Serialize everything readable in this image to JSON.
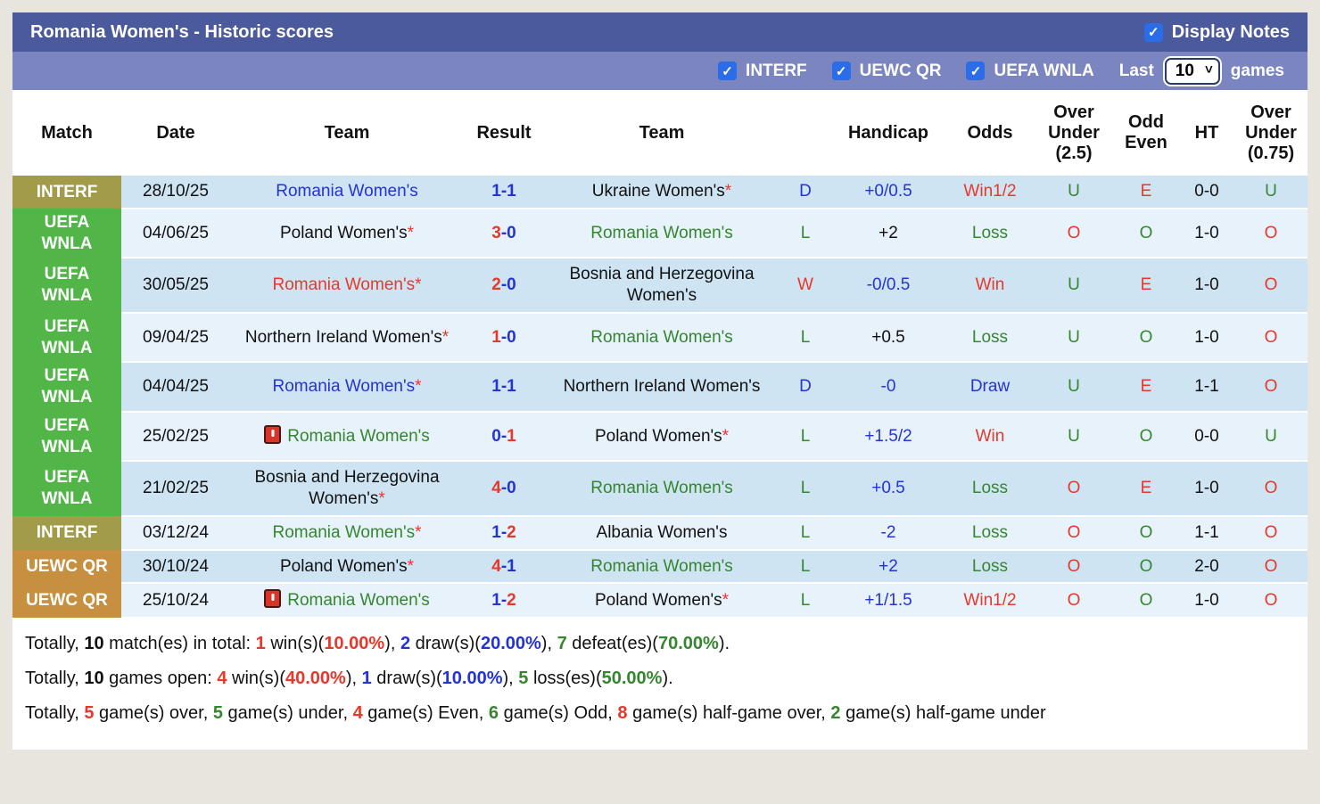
{
  "header": {
    "title": "Romania Women's - Historic scores",
    "display_notes_label": "Display Notes",
    "display_notes_checked": true
  },
  "filters": {
    "competitions": [
      {
        "label": "INTERF",
        "checked": true
      },
      {
        "label": "UEWC QR",
        "checked": true
      },
      {
        "label": "UEFA WNLA",
        "checked": true
      }
    ],
    "last_label": "Last",
    "games_label": "games",
    "last_value": "10"
  },
  "colors": {
    "r": "#e6382b",
    "g": "#35862f",
    "b": "#2433d6",
    "k": "#111111",
    "titlebar": "#4a5a9c",
    "filterbar": "#7b85bf",
    "checkbox": "#2b6de8",
    "row_dark": "#cfe4f2",
    "row_light": "#e7f2fa",
    "badge_interf": "#a19b4a",
    "badge_uefa_wnla": "#52b548",
    "badge_uewc_qr": "#c79040"
  },
  "table": {
    "columns": [
      "Match",
      "Date",
      "Team",
      "Result",
      "Team",
      "",
      "Handicap",
      "Odds",
      "Over Under (2.5)",
      "Odd Even",
      "HT",
      "Over Under (0.75)"
    ],
    "rows": [
      {
        "badge": {
          "text": "INTERF",
          "type": "interf"
        },
        "date": "28/10/25",
        "team1": {
          "name": "Romania Women's",
          "color": "b",
          "star": false,
          "note": false
        },
        "result": [
          {
            "t": "1-1",
            "c": "b"
          }
        ],
        "team2": {
          "name": "Ukraine Women's",
          "color": "k",
          "star": true,
          "note": false
        },
        "wdl": {
          "t": "D",
          "c": "b"
        },
        "handicap": {
          "t": "+0/0.5",
          "c": "b"
        },
        "odds": {
          "t": "Win1/2",
          "c": "r"
        },
        "ou25": {
          "t": "U",
          "c": "g"
        },
        "oddeven": {
          "t": "E",
          "c": "r"
        },
        "ht": "0-0",
        "ou075": {
          "t": "U",
          "c": "g"
        }
      },
      {
        "badge": {
          "text": "UEFA\nWNLA",
          "type": "uefa"
        },
        "date": "04/06/25",
        "team1": {
          "name": "Poland Women's",
          "color": "k",
          "star": true,
          "note": false
        },
        "result": [
          {
            "t": "3",
            "c": "r"
          },
          {
            "t": "-0",
            "c": "b"
          }
        ],
        "team2": {
          "name": "Romania Women's",
          "color": "g",
          "star": false,
          "note": false
        },
        "wdl": {
          "t": "L",
          "c": "g"
        },
        "handicap": {
          "t": "+2",
          "c": "k"
        },
        "odds": {
          "t": "Loss",
          "c": "g"
        },
        "ou25": {
          "t": "O",
          "c": "r"
        },
        "oddeven": {
          "t": "O",
          "c": "g"
        },
        "ht": "1-0",
        "ou075": {
          "t": "O",
          "c": "r"
        }
      },
      {
        "badge": {
          "text": "UEFA\nWNLA",
          "type": "uefa"
        },
        "date": "30/05/25",
        "team1": {
          "name": "Romania Women's",
          "color": "r",
          "star": true,
          "note": false
        },
        "result": [
          {
            "t": "2",
            "c": "r"
          },
          {
            "t": "-0",
            "c": "b"
          }
        ],
        "team2": {
          "name": "Bosnia and Herzegovina Women's",
          "color": "k",
          "star": false,
          "note": false
        },
        "wdl": {
          "t": "W",
          "c": "r"
        },
        "handicap": {
          "t": "-0/0.5",
          "c": "b"
        },
        "odds": {
          "t": "Win",
          "c": "r"
        },
        "ou25": {
          "t": "U",
          "c": "g"
        },
        "oddeven": {
          "t": "E",
          "c": "r"
        },
        "ht": "1-0",
        "ou075": {
          "t": "O",
          "c": "r"
        }
      },
      {
        "badge": {
          "text": "UEFA\nWNLA",
          "type": "uefa"
        },
        "date": "09/04/25",
        "team1": {
          "name": "Northern Ireland Women's",
          "color": "k",
          "star": true,
          "note": false
        },
        "result": [
          {
            "t": "1",
            "c": "r"
          },
          {
            "t": "-0",
            "c": "b"
          }
        ],
        "team2": {
          "name": "Romania Women's",
          "color": "g",
          "star": false,
          "note": false
        },
        "wdl": {
          "t": "L",
          "c": "g"
        },
        "handicap": {
          "t": "+0.5",
          "c": "k"
        },
        "odds": {
          "t": "Loss",
          "c": "g"
        },
        "ou25": {
          "t": "U",
          "c": "g"
        },
        "oddeven": {
          "t": "O",
          "c": "g"
        },
        "ht": "1-0",
        "ou075": {
          "t": "O",
          "c": "r"
        }
      },
      {
        "badge": {
          "text": "UEFA\nWNLA",
          "type": "uefa"
        },
        "date": "04/04/25",
        "team1": {
          "name": "Romania Women's",
          "color": "b",
          "star": true,
          "note": false
        },
        "result": [
          {
            "t": "1-1",
            "c": "b"
          }
        ],
        "team2": {
          "name": "Northern Ireland Women's",
          "color": "k",
          "star": false,
          "note": false
        },
        "wdl": {
          "t": "D",
          "c": "b"
        },
        "handicap": {
          "t": "-0",
          "c": "b"
        },
        "odds": {
          "t": "Draw",
          "c": "b"
        },
        "ou25": {
          "t": "U",
          "c": "g"
        },
        "oddeven": {
          "t": "E",
          "c": "r"
        },
        "ht": "1-1",
        "ou075": {
          "t": "O",
          "c": "r"
        }
      },
      {
        "badge": {
          "text": "UEFA\nWNLA",
          "type": "uefa"
        },
        "date": "25/02/25",
        "team1": {
          "name": "Romania Women's",
          "color": "g",
          "star": false,
          "note": true
        },
        "result": [
          {
            "t": "0-",
            "c": "b"
          },
          {
            "t": "1",
            "c": "r"
          }
        ],
        "team2": {
          "name": "Poland Women's",
          "color": "k",
          "star": true,
          "note": false
        },
        "wdl": {
          "t": "L",
          "c": "g"
        },
        "handicap": {
          "t": "+1.5/2",
          "c": "b"
        },
        "odds": {
          "t": "Win",
          "c": "r"
        },
        "ou25": {
          "t": "U",
          "c": "g"
        },
        "oddeven": {
          "t": "O",
          "c": "g"
        },
        "ht": "0-0",
        "ou075": {
          "t": "U",
          "c": "g"
        }
      },
      {
        "badge": {
          "text": "UEFA\nWNLA",
          "type": "uefa"
        },
        "date": "21/02/25",
        "team1": {
          "name": "Bosnia and Herzegovina Women's",
          "color": "k",
          "star": true,
          "note": false
        },
        "result": [
          {
            "t": "4",
            "c": "r"
          },
          {
            "t": "-0",
            "c": "b"
          }
        ],
        "team2": {
          "name": "Romania Women's",
          "color": "g",
          "star": false,
          "note": false
        },
        "wdl": {
          "t": "L",
          "c": "g"
        },
        "handicap": {
          "t": "+0.5",
          "c": "b"
        },
        "odds": {
          "t": "Loss",
          "c": "g"
        },
        "ou25": {
          "t": "O",
          "c": "r"
        },
        "oddeven": {
          "t": "E",
          "c": "r"
        },
        "ht": "1-0",
        "ou075": {
          "t": "O",
          "c": "r"
        }
      },
      {
        "badge": {
          "text": "INTERF",
          "type": "interf"
        },
        "date": "03/12/24",
        "team1": {
          "name": "Romania Women's",
          "color": "g",
          "star": true,
          "note": false
        },
        "result": [
          {
            "t": "1-",
            "c": "b"
          },
          {
            "t": "2",
            "c": "r"
          }
        ],
        "team2": {
          "name": "Albania Women's",
          "color": "k",
          "star": false,
          "note": false
        },
        "wdl": {
          "t": "L",
          "c": "g"
        },
        "handicap": {
          "t": "-2",
          "c": "b"
        },
        "odds": {
          "t": "Loss",
          "c": "g"
        },
        "ou25": {
          "t": "O",
          "c": "r"
        },
        "oddeven": {
          "t": "O",
          "c": "g"
        },
        "ht": "1-1",
        "ou075": {
          "t": "O",
          "c": "r"
        }
      },
      {
        "badge": {
          "text": "UEWC QR",
          "type": "uewc"
        },
        "date": "30/10/24",
        "team1": {
          "name": "Poland Women's",
          "color": "k",
          "star": true,
          "note": false
        },
        "result": [
          {
            "t": "4",
            "c": "r"
          },
          {
            "t": "-1",
            "c": "b"
          }
        ],
        "team2": {
          "name": "Romania Women's",
          "color": "g",
          "star": false,
          "note": false
        },
        "wdl": {
          "t": "L",
          "c": "g"
        },
        "handicap": {
          "t": "+2",
          "c": "b"
        },
        "odds": {
          "t": "Loss",
          "c": "g"
        },
        "ou25": {
          "t": "O",
          "c": "r"
        },
        "oddeven": {
          "t": "O",
          "c": "g"
        },
        "ht": "2-0",
        "ou075": {
          "t": "O",
          "c": "r"
        }
      },
      {
        "badge": {
          "text": "UEWC QR",
          "type": "uewc"
        },
        "date": "25/10/24",
        "team1": {
          "name": "Romania Women's",
          "color": "g",
          "star": false,
          "note": true
        },
        "result": [
          {
            "t": "1-",
            "c": "b"
          },
          {
            "t": "2",
            "c": "r"
          }
        ],
        "team2": {
          "name": "Poland Women's",
          "color": "k",
          "star": true,
          "note": false
        },
        "wdl": {
          "t": "L",
          "c": "g"
        },
        "handicap": {
          "t": "+1/1.5",
          "c": "b"
        },
        "odds": {
          "t": "Win1/2",
          "c": "r"
        },
        "ou25": {
          "t": "O",
          "c": "r"
        },
        "oddeven": {
          "t": "O",
          "c": "g"
        },
        "ht": "1-0",
        "ou075": {
          "t": "O",
          "c": "r"
        }
      }
    ]
  },
  "summary": {
    "lines": [
      [
        {
          "t": "Totally, ",
          "c": "k",
          "b": 0
        },
        {
          "t": "10",
          "c": "k",
          "b": 1
        },
        {
          "t": " match(es) in total: ",
          "c": "k",
          "b": 0
        },
        {
          "t": "1",
          "c": "r",
          "b": 1
        },
        {
          "t": " win(s)(",
          "c": "k",
          "b": 0
        },
        {
          "t": "10.00%",
          "c": "r",
          "b": 1
        },
        {
          "t": "), ",
          "c": "k",
          "b": 0
        },
        {
          "t": "2",
          "c": "b",
          "b": 1
        },
        {
          "t": " draw(s)(",
          "c": "k",
          "b": 0
        },
        {
          "t": "20.00%",
          "c": "b",
          "b": 1
        },
        {
          "t": "), ",
          "c": "k",
          "b": 0
        },
        {
          "t": "7",
          "c": "g",
          "b": 1
        },
        {
          "t": " defeat(es)(",
          "c": "k",
          "b": 0
        },
        {
          "t": "70.00%",
          "c": "g",
          "b": 1
        },
        {
          "t": ").",
          "c": "k",
          "b": 0
        }
      ],
      [
        {
          "t": "Totally, ",
          "c": "k",
          "b": 0
        },
        {
          "t": "10",
          "c": "k",
          "b": 1
        },
        {
          "t": " games open: ",
          "c": "k",
          "b": 0
        },
        {
          "t": "4",
          "c": "r",
          "b": 1
        },
        {
          "t": " win(s)(",
          "c": "k",
          "b": 0
        },
        {
          "t": "40.00%",
          "c": "r",
          "b": 1
        },
        {
          "t": "), ",
          "c": "k",
          "b": 0
        },
        {
          "t": "1",
          "c": "b",
          "b": 1
        },
        {
          "t": " draw(s)(",
          "c": "k",
          "b": 0
        },
        {
          "t": "10.00%",
          "c": "b",
          "b": 1
        },
        {
          "t": "), ",
          "c": "k",
          "b": 0
        },
        {
          "t": "5",
          "c": "g",
          "b": 1
        },
        {
          "t": " loss(es)(",
          "c": "k",
          "b": 0
        },
        {
          "t": "50.00%",
          "c": "g",
          "b": 1
        },
        {
          "t": ").",
          "c": "k",
          "b": 0
        }
      ],
      [
        {
          "t": "Totally, ",
          "c": "k",
          "b": 0
        },
        {
          "t": "5",
          "c": "r",
          "b": 1
        },
        {
          "t": " game(s) over, ",
          "c": "k",
          "b": 0
        },
        {
          "t": "5",
          "c": "g",
          "b": 1
        },
        {
          "t": " game(s) under, ",
          "c": "k",
          "b": 0
        },
        {
          "t": "4",
          "c": "r",
          "b": 1
        },
        {
          "t": " game(s) Even, ",
          "c": "k",
          "b": 0
        },
        {
          "t": "6",
          "c": "g",
          "b": 1
        },
        {
          "t": " game(s) Odd, ",
          "c": "k",
          "b": 0
        },
        {
          "t": "8",
          "c": "r",
          "b": 1
        },
        {
          "t": " game(s) half-game over, ",
          "c": "k",
          "b": 0
        },
        {
          "t": "2",
          "c": "g",
          "b": 1
        },
        {
          "t": " game(s) half-game under",
          "c": "k",
          "b": 0
        }
      ]
    ]
  }
}
